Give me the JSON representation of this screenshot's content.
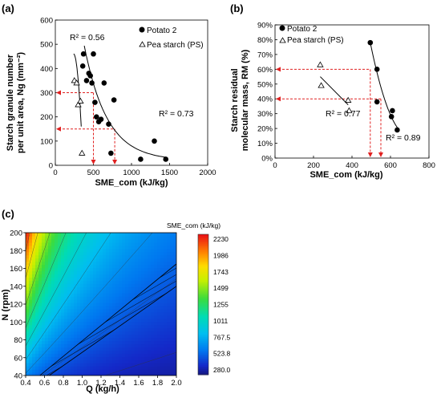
{
  "chart_data": [
    {
      "panel": "(a)",
      "type": "scatter",
      "xlabel": "SME_com (kJ/kg)",
      "ylabel_line1": "Starch granule number",
      "ylabel_line2": "per unit area, Ng (mm⁻²)",
      "xlim": [
        0,
        2000
      ],
      "ylim": [
        0,
        600
      ],
      "xticks": [
        "0",
        "500",
        "1000",
        "1500",
        "2000"
      ],
      "yticks": [
        "0",
        "100",
        "200",
        "300",
        "400",
        "500",
        "600"
      ],
      "legend_position": "top-right",
      "series": [
        {
          "name": "Potato 2",
          "marker": "filled-circle",
          "x": [
            360,
            370,
            410,
            440,
            460,
            480,
            500,
            520,
            540,
            570,
            600,
            640,
            700,
            730,
            770,
            1120,
            1300,
            1450
          ],
          "y": [
            410,
            460,
            350,
            380,
            370,
            340,
            460,
            260,
            200,
            180,
            190,
            340,
            170,
            50,
            270,
            25,
            100,
            25
          ]
        },
        {
          "name": "Pea starch (PS)",
          "marker": "open-triangle",
          "x": [
            250,
            280,
            300,
            330,
            350
          ],
          "y": [
            350,
            340,
            250,
            265,
            50
          ]
        }
      ],
      "annotations": [
        {
          "label": "R² = 0.56"
        },
        {
          "label": "R² = 0.73"
        }
      ],
      "reference_lines_y": [
        300,
        150
      ],
      "reference_lines_x": [
        500,
        780
      ]
    },
    {
      "panel": "(b)",
      "type": "scatter",
      "xlabel": "SME_com (kJ/kg)",
      "ylabel_line1": "Starch residual",
      "ylabel_line2": "molecular mass, RM (%)",
      "xlim": [
        0,
        800
      ],
      "ylim": [
        0,
        90
      ],
      "xticks": [
        "0",
        "200",
        "400",
        "600",
        "800"
      ],
      "yticks": [
        "0%",
        "10%",
        "20%",
        "30%",
        "40%",
        "50%",
        "60%",
        "70%",
        "80%",
        "90%"
      ],
      "legend_position": "top-left",
      "series": [
        {
          "name": "Potato 2",
          "marker": "filled-circle",
          "x": [
            495,
            530,
            530,
            605,
            610,
            635
          ],
          "y": [
            78,
            60,
            38,
            28,
            32,
            19
          ]
        },
        {
          "name": "Pea starch (PS)",
          "marker": "open-triangle",
          "x": [
            235,
            240,
            380,
            385
          ],
          "y": [
            63,
            49,
            39,
            32
          ]
        }
      ],
      "annotations": [
        {
          "label": "R² = 0.77"
        },
        {
          "label": "R² = 0.89"
        }
      ],
      "reference_lines_y": [
        60,
        40
      ],
      "reference_lines_x": [
        495,
        550
      ]
    },
    {
      "panel": "(c)",
      "type": "heatmap",
      "xlabel": "Q (kg/h)",
      "ylabel": "N (rpm)",
      "colorbar_title": "SME_com (kJ/kg)",
      "xlim": [
        0.4,
        2.0
      ],
      "ylim": [
        40,
        200
      ],
      "xticks": [
        "0.4",
        "0.6",
        "0.8",
        "1.0",
        "1.2",
        "1.4",
        "1.6",
        "1.8",
        "2.0"
      ],
      "yticks": [
        "40",
        "60",
        "80",
        "100",
        "120",
        "140",
        "160",
        "180",
        "200"
      ],
      "colorbar_ticks": [
        "2230",
        "1986",
        "1743",
        "1499",
        "1255",
        "1011",
        "767.5",
        "523.8",
        "280.0"
      ],
      "value_range": [
        280,
        2230
      ],
      "hatched_region": "operating window band"
    }
  ]
}
